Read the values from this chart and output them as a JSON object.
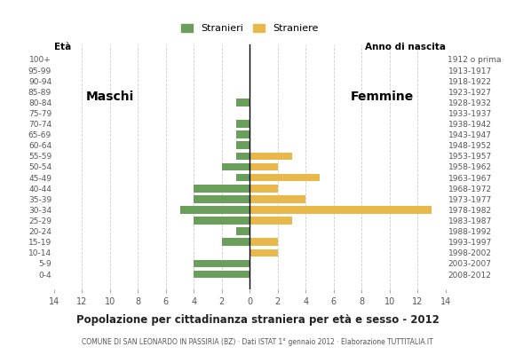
{
  "age_groups": [
    "100+",
    "95-99",
    "90-94",
    "85-89",
    "80-84",
    "75-79",
    "70-74",
    "65-69",
    "60-64",
    "55-59",
    "50-54",
    "45-49",
    "40-44",
    "35-39",
    "30-34",
    "25-29",
    "20-24",
    "15-19",
    "10-14",
    "5-9",
    "0-4"
  ],
  "birth_years": [
    "1912 o prima",
    "1913-1917",
    "1918-1922",
    "1923-1927",
    "1928-1932",
    "1933-1937",
    "1938-1942",
    "1943-1947",
    "1948-1952",
    "1953-1957",
    "1958-1962",
    "1963-1967",
    "1968-1972",
    "1973-1977",
    "1978-1982",
    "1983-1987",
    "1988-1992",
    "1993-1997",
    "1998-2002",
    "2003-2007",
    "2008-2012"
  ],
  "males": [
    0,
    0,
    0,
    0,
    1,
    0,
    1,
    1,
    1,
    1,
    2,
    1,
    4,
    4,
    5,
    4,
    1,
    2,
    0,
    4,
    4
  ],
  "females": [
    0,
    0,
    0,
    0,
    0,
    0,
    0,
    0,
    0,
    3,
    2,
    5,
    2,
    4,
    13,
    3,
    0,
    2,
    2,
    0,
    0
  ],
  "male_color": "#6a9f5b",
  "female_color": "#e8b84b",
  "title": "Popolazione per cittadinanza straniera per età e sesso - 2012",
  "subtitle": "COMUNE DI SAN LEONARDO IN PASSIRIA (BZ) · Dati ISTAT 1° gennaio 2012 · Elaborazione TUTTITALIA.IT",
  "legend_male": "Stranieri",
  "legend_female": "Straniere",
  "label_maschi": "Maschi",
  "label_femmine": "Femmine",
  "xlim": 14,
  "background_color": "#ffffff",
  "grid_color": "#cccccc"
}
